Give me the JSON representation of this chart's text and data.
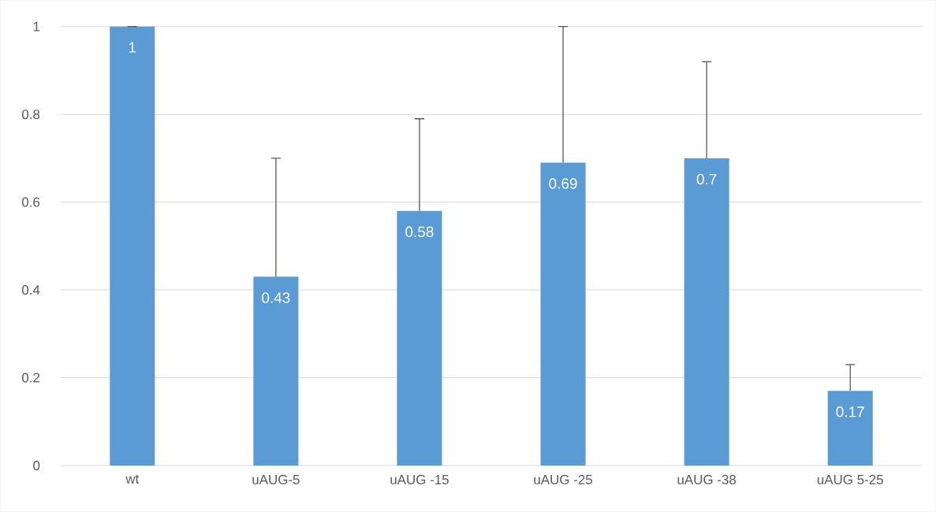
{
  "chart_data": {
    "type": "bar",
    "categories": [
      "wt",
      "uAUG-5",
      "uAUG -15",
      "uAUG -25",
      "uAUG -38",
      "uAUG 5-25"
    ],
    "values": [
      1,
      0.43,
      0.58,
      0.69,
      0.7,
      0.17
    ],
    "errors": [
      [
        1,
        1
      ],
      [
        0.43,
        0.7
      ],
      [
        0.58,
        0.79
      ],
      [
        0.69,
        1.0
      ],
      [
        0.7,
        0.92
      ],
      [
        0.17,
        0.23
      ]
    ],
    "color": "#5b9bd5",
    "ylim": [
      0,
      1
    ],
    "yticks": [
      0,
      0.2,
      0.4,
      0.6,
      0.8,
      1
    ],
    "grid": "y",
    "data_labels": true
  }
}
